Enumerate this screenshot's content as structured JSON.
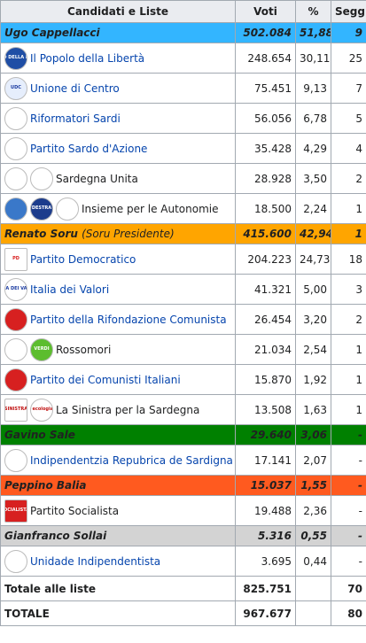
{
  "header": {
    "col1": "Candidati e Liste",
    "col2": "Voti",
    "col3": "%",
    "col4": "Seggi"
  },
  "coalitions": [
    {
      "name": "Ugo Cappellacci",
      "note": "",
      "votes": "502.084",
      "pct": "51,88",
      "seats": "9",
      "color": "#33b5ff",
      "parties": [
        {
          "name": "Il Popolo della Libertà",
          "votes": "248.654",
          "pct": "30,11",
          "seats": "25",
          "link": true,
          "logos": [
            {
              "icon": "pdl-logo",
              "text": "POPOLO DELLA LIBERTÀ",
              "bg": "#1f4ea5",
              "fg": "#ffffff"
            }
          ]
        },
        {
          "name": "Unione di Centro",
          "votes": "75.451",
          "pct": "9,13",
          "seats": "7",
          "link": true,
          "logos": [
            {
              "icon": "udc-logo",
              "text": "UDC",
              "bg": "#e6eefc",
              "fg": "#1a3aa0"
            }
          ]
        },
        {
          "name": "Riformatori Sardi",
          "votes": "56.056",
          "pct": "6,78",
          "seats": "5",
          "link": true,
          "logos": [
            {
              "icon": "placeholder-logo",
              "text": "",
              "bg": "#ffffff",
              "fg": "#000000"
            }
          ]
        },
        {
          "name": "Partito Sardo d'Azione",
          "votes": "35.428",
          "pct": "4,29",
          "seats": "4",
          "link": true,
          "logos": [
            {
              "icon": "placeholder-logo",
              "text": "",
              "bg": "#ffffff",
              "fg": "#000000"
            }
          ]
        },
        {
          "name": "Sardegna Unita",
          "votes": "28.928",
          "pct": "3,50",
          "seats": "2",
          "link": false,
          "logos": [
            {
              "icon": "placeholder-logo",
              "text": "",
              "bg": "#ffffff",
              "fg": "#000000"
            },
            {
              "icon": "placeholder-logo",
              "text": "",
              "bg": "#ffffff",
              "fg": "#000000"
            }
          ]
        },
        {
          "name": "Insieme per le Autonomie",
          "votes": "18.500",
          "pct": "2,24",
          "seats": "1",
          "link": false,
          "logos": [
            {
              "icon": "autonomie-logo",
              "text": "",
              "bg": "#3a78c9",
              "fg": "#ffffff"
            },
            {
              "icon": "destra-logo",
              "text": "DESTRA",
              "bg": "#1c3c8c",
              "fg": "#ffffff"
            },
            {
              "icon": "placeholder-logo",
              "text": "",
              "bg": "#ffffff",
              "fg": "#000000"
            }
          ]
        }
      ]
    },
    {
      "name": "Renato Soru",
      "note": "(Soru Presidente)",
      "votes": "415.600",
      "pct": "42,94",
      "seats": "1",
      "color": "#ffa500",
      "parties": [
        {
          "name": "Partito Democratico",
          "votes": "204.223",
          "pct": "24,73",
          "seats": "18",
          "link": true,
          "logos": [
            {
              "icon": "pd-logo",
              "text": "PD",
              "bg": "#ffffff",
              "fg": "#d81e1e"
            }
          ]
        },
        {
          "name": "Italia dei Valori",
          "votes": "41.321",
          "pct": "5,00",
          "seats": "3",
          "link": true,
          "logos": [
            {
              "icon": "idv-logo",
              "text": "ITALIA DEI VALORI",
              "bg": "#ffffff",
              "fg": "#1a3aa0"
            }
          ]
        },
        {
          "name": "Partito della Rifondazione Comunista",
          "votes": "26.454",
          "pct": "3,20",
          "seats": "2",
          "link": true,
          "logos": [
            {
              "icon": "prc-logo",
              "text": "",
              "bg": "#d72020",
              "fg": "#ffffff"
            }
          ]
        },
        {
          "name": "Rossomori",
          "votes": "21.034",
          "pct": "2,54",
          "seats": "1",
          "link": false,
          "logos": [
            {
              "icon": "placeholder-logo",
              "text": "",
              "bg": "#ffffff",
              "fg": "#000000"
            },
            {
              "icon": "verdi-logo",
              "text": "VERDI",
              "bg": "#5cbd2e",
              "fg": "#ffffff"
            }
          ]
        },
        {
          "name": "Partito dei Comunisti Italiani",
          "votes": "15.870",
          "pct": "1,92",
          "seats": "1",
          "link": true,
          "logos": [
            {
              "icon": "pdci-logo",
              "text": "",
              "bg": "#d72020",
              "fg": "#ffd700"
            }
          ]
        },
        {
          "name": "La Sinistra per la Sardegna",
          "votes": "13.508",
          "pct": "1,63",
          "seats": "1",
          "link": false,
          "logos": [
            {
              "icon": "sinistra-logo",
              "text": "SINISTRA",
              "bg": "#ffffff",
              "fg": "#c01010"
            },
            {
              "icon": "sinistra-ecologia-logo",
              "text": "sinistra ecologia libertà",
              "bg": "#ffffff",
              "fg": "#c01010"
            }
          ]
        }
      ]
    },
    {
      "name": "Gavino Sale",
      "note": "",
      "votes": "29.640",
      "pct": "3,06",
      "seats": "-",
      "color": "#008000",
      "parties": [
        {
          "name": "Indipendentzia Repubrica de Sardigna",
          "votes": "17.141",
          "pct": "2,07",
          "seats": "-",
          "link": true,
          "logos": [
            {
              "icon": "placeholder-logo",
              "text": "",
              "bg": "#ffffff",
              "fg": "#000000"
            }
          ]
        }
      ]
    },
    {
      "name": "Peppino Balia",
      "note": "",
      "votes": "15.037",
      "pct": "1,55",
      "seats": "-",
      "color": "#ff5a1f",
      "parties": [
        {
          "name": "Partito Socialista",
          "votes": "19.488",
          "pct": "2,36",
          "seats": "-",
          "link": false,
          "logos": [
            {
              "icon": "ps-logo",
              "text": "PARTITO SOCIALISTA ITALIANO",
              "bg": "#d72020",
              "fg": "#ffffff"
            }
          ]
        }
      ]
    },
    {
      "name": "Gianfranco Sollai",
      "note": "",
      "votes": "5.316",
      "pct": "0,55",
      "seats": "-",
      "color": "#d3d3d3",
      "parties": [
        {
          "name": "Unidade Indipendentista",
          "votes": "3.695",
          "pct": "0,44",
          "seats": "-",
          "link": true,
          "logos": [
            {
              "icon": "placeholder-logo",
              "text": "",
              "bg": "#ffffff",
              "fg": "#000000"
            }
          ]
        }
      ]
    }
  ],
  "totals": [
    {
      "label": "Totale alle liste",
      "votes": "825.751",
      "pct": "",
      "seats": "70"
    },
    {
      "label": "TOTALE",
      "votes": "967.677",
      "pct": "",
      "seats": "80"
    }
  ]
}
